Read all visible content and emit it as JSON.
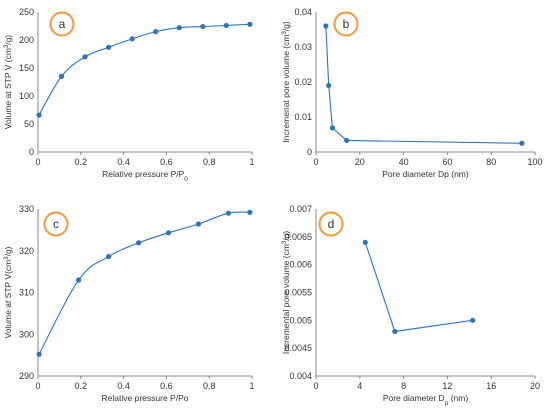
{
  "colors": {
    "series": "#2e75b6",
    "badge_ring": "#f0a04b"
  },
  "chart_data": [
    {
      "type": "line",
      "panel_label": "a",
      "smooth": true,
      "xlabel": "Relative pressure P/P",
      "xlabel_sub": "0",
      "ylabel": "Volume at STP V (cm",
      "ylabel_sup": "3",
      "ylabel_tail": "/g)",
      "xlim": [
        0,
        1
      ],
      "ylim": [
        0,
        250
      ],
      "xticks": [
        "0",
        "0.2",
        "0.4",
        "0.6",
        "0.8",
        "1"
      ],
      "yticks": [
        "0",
        "50",
        "100",
        "150",
        "200",
        "250"
      ],
      "grid": false,
      "x": [
        0.005,
        0.11,
        0.22,
        0.33,
        0.44,
        0.55,
        0.66,
        0.77,
        0.88,
        0.99
      ],
      "y": [
        66,
        135,
        170,
        187,
        202,
        215,
        222,
        224,
        226,
        228
      ]
    },
    {
      "type": "line",
      "panel_label": "b",
      "smooth": false,
      "xlabel": "Pore diameter Dp (nm)",
      "xlabel_sub": "",
      "ylabel": "Incremenat pore volume (cm",
      "ylabel_sup": "3",
      "ylabel_tail": "/g)",
      "xlim": [
        0,
        100
      ],
      "ylim": [
        0,
        0.04
      ],
      "xticks": [
        "0",
        "20",
        "40",
        "60",
        "80",
        "100"
      ],
      "yticks": [
        "0",
        "0.01",
        "0.02",
        "0.03",
        "0.04"
      ],
      "grid": false,
      "x": [
        4.5,
        5.8,
        7.5,
        14,
        94
      ],
      "y": [
        0.036,
        0.019,
        0.0069,
        0.0033,
        0.0025
      ]
    },
    {
      "type": "line",
      "panel_label": "c",
      "smooth": true,
      "xlabel": "Relative pressure P/Po",
      "xlabel_sub": "",
      "ylabel": "Volume at STP V(cm",
      "ylabel_sup": "3",
      "ylabel_tail": "/g)",
      "xlim": [
        0,
        1
      ],
      "ylim": [
        290,
        330
      ],
      "xticks": [
        "0",
        "0.2",
        "0.4",
        "0.6",
        "0.8",
        "1"
      ],
      "yticks": [
        "290",
        "300",
        "310",
        "320",
        "330"
      ],
      "grid": false,
      "x": [
        0.005,
        0.19,
        0.33,
        0.47,
        0.61,
        0.75,
        0.89,
        0.99
      ],
      "y": [
        295.2,
        313,
        318.6,
        321.9,
        324.3,
        326.4,
        329,
        329.2
      ]
    },
    {
      "type": "line",
      "panel_label": "d",
      "smooth": false,
      "xlabel": "Pore diameter D",
      "xlabel_sub": "p",
      "xlabel_tail": " (nm)",
      "ylabel": "Incremental pore volume (cm",
      "ylabel_sup": "3",
      "ylabel_tail": "/g)",
      "xlim": [
        0,
        20
      ],
      "ylim": [
        0.004,
        0.007
      ],
      "xticks": [
        "0",
        "4",
        "8",
        "12",
        "16",
        "20"
      ],
      "yticks": [
        "0.004",
        "0.0045",
        "0.005",
        "0.0055",
        "0.006",
        "0.0065",
        "0.007"
      ],
      "grid": false,
      "x": [
        4.5,
        7.2,
        14.3
      ],
      "y": [
        0.0064,
        0.0048,
        0.005
      ]
    }
  ]
}
